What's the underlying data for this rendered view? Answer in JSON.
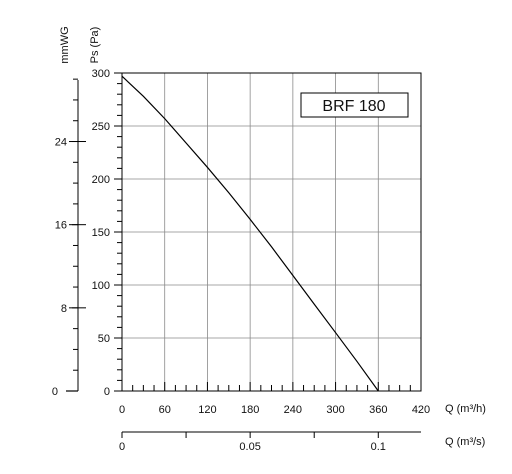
{
  "chart_data": {
    "type": "line",
    "title": "",
    "series": [
      {
        "name": "BRF 180",
        "x": [
          0,
          30,
          60,
          90,
          120,
          150,
          180,
          210,
          240,
          270,
          300,
          330,
          360
        ],
        "y": [
          297,
          278,
          257,
          234,
          211,
          187,
          162,
          136,
          109,
          82,
          55,
          28,
          0
        ]
      }
    ],
    "x_axis": {
      "label": "Q (m³/h)",
      "range": [
        0,
        420
      ],
      "ticks": [
        "0",
        "60",
        "120",
        "180",
        "240",
        "300",
        "360",
        "420"
      ]
    },
    "y_axis_left": {
      "label": "Ps (Pa)",
      "range": [
        0,
        300
      ],
      "ticks": [
        "0",
        "50",
        "100",
        "150",
        "200",
        "250",
        "300"
      ]
    },
    "y_axis_secondary": {
      "label": "mmWG",
      "ticks": [
        "0",
        "8",
        "16",
        "24"
      ]
    },
    "x_axis_secondary": {
      "label": "Q (m³/s)",
      "ticks": [
        "0",
        "0.05",
        "0.1"
      ]
    },
    "grid": true,
    "legend_box": "BRF 180",
    "colors": {
      "line": "#000000",
      "grid": "#8a8a8a",
      "axis": "#000000"
    }
  }
}
